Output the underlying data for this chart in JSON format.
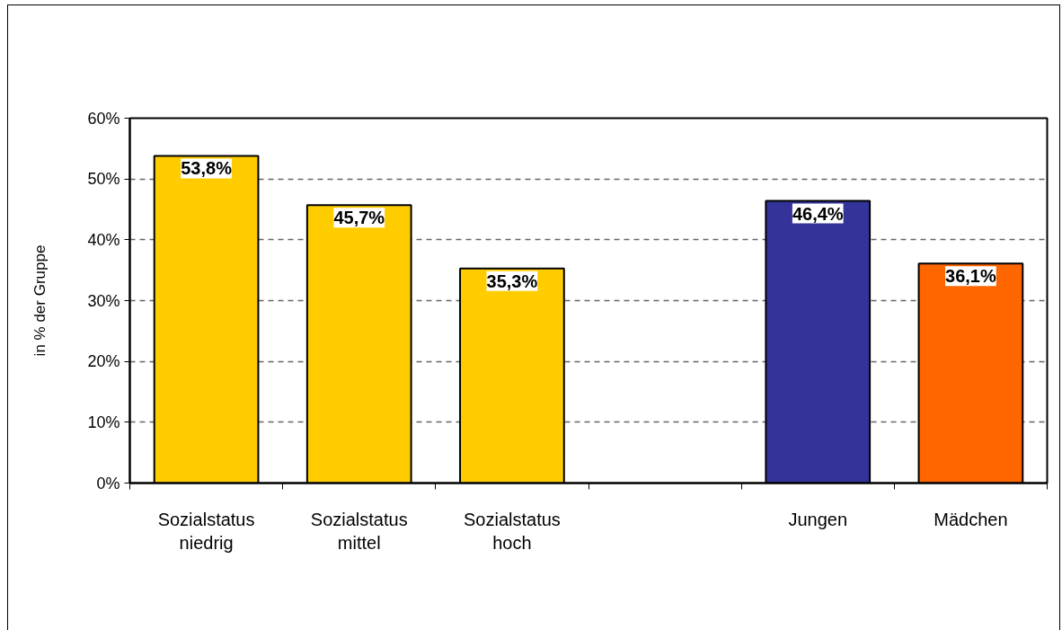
{
  "chart_data": {
    "type": "bar",
    "categories": [
      "Sozialstatus\nniedrig",
      "Sozialstatus\nmittel",
      "Sozialstatus\nhoch",
      null,
      "Jungen",
      "Mädchen"
    ],
    "values": [
      53.8,
      45.7,
      35.3,
      null,
      46.4,
      36.1
    ],
    "colors": [
      "#ffcc00",
      "#ffcc00",
      "#ffcc00",
      null,
      "#333399",
      "#ff6600"
    ],
    "value_labels": [
      "53,8%",
      "45,7%",
      "35,3%",
      null,
      "46,4%",
      "36,1%"
    ],
    "ylabel": "in % der Gruppe",
    "ylim": [
      0,
      60
    ],
    "yticks": [
      {
        "value": 0,
        "label": "0%"
      },
      {
        "value": 10,
        "label": "10%"
      },
      {
        "value": 20,
        "label": "20%"
      },
      {
        "value": 30,
        "label": "30%"
      },
      {
        "value": 40,
        "label": "40%"
      },
      {
        "value": 50,
        "label": "50%"
      },
      {
        "value": 60,
        "label": "60%"
      }
    ],
    "grid": "y"
  }
}
